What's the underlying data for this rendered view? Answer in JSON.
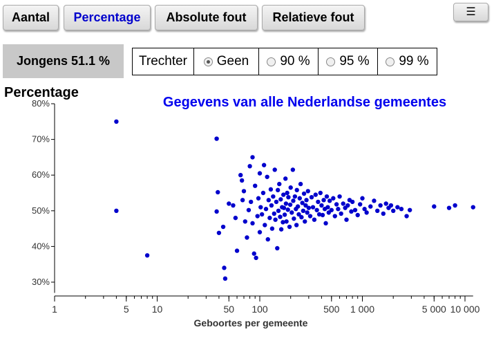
{
  "tabs": [
    {
      "label": "Aantal",
      "active": false
    },
    {
      "label": "Percentage",
      "active": true
    },
    {
      "label": "Absolute fout",
      "active": false
    },
    {
      "label": "Relatieve fout",
      "active": false
    }
  ],
  "menu": {
    "icon": "menu-icon",
    "glyph": "☰"
  },
  "stat": {
    "label": "Jongens 51.1 %"
  },
  "funnel": {
    "label": "Trechter",
    "options": [
      {
        "label": "Geen",
        "checked": true
      },
      {
        "label": "90 %",
        "checked": false
      },
      {
        "label": "95 %",
        "checked": false
      },
      {
        "label": "99 %",
        "checked": false
      }
    ]
  },
  "colors": {
    "point": "#0000cc",
    "title": "#0000ee",
    "active_tab": "#0000cc"
  },
  "chart_data": {
    "type": "scatter",
    "title": "Gegevens van alle Nederlandse gemeentes",
    "ylabel": "Percentage",
    "xlabel": "Geboortes per gemeente",
    "x_scale": "log",
    "xlim": [
      1,
      12000
    ],
    "ylim": [
      27,
      80
    ],
    "x_ticks": [
      {
        "value": 1,
        "label": "1"
      },
      {
        "value": 5,
        "label": "5"
      },
      {
        "value": 10,
        "label": "10"
      },
      {
        "value": 50,
        "label": "50"
      },
      {
        "value": 100,
        "label": "100"
      },
      {
        "value": 500,
        "label": "500"
      },
      {
        "value": 1000,
        "label": "1 000"
      },
      {
        "value": 5000,
        "label": "5 000"
      },
      {
        "value": 10000,
        "label": "10 000"
      }
    ],
    "y_ticks": [
      {
        "value": 30,
        "label": "30%"
      },
      {
        "value": 40,
        "label": "40%"
      },
      {
        "value": 50,
        "label": "50%"
      },
      {
        "value": 60,
        "label": "60%"
      },
      {
        "value": 70,
        "label": "70%"
      },
      {
        "value": 80,
        "label": "80%"
      }
    ],
    "points": [
      [
        4,
        75
      ],
      [
        4,
        50
      ],
      [
        8,
        37.5
      ],
      [
        38,
        70.2
      ],
      [
        39,
        55.2
      ],
      [
        38,
        49.8
      ],
      [
        40,
        43.8
      ],
      [
        44,
        45.5
      ],
      [
        45,
        34
      ],
      [
        46,
        31
      ],
      [
        50,
        52
      ],
      [
        55,
        51.5
      ],
      [
        58,
        48
      ],
      [
        60,
        38.8
      ],
      [
        65,
        60
      ],
      [
        67,
        58.5
      ],
      [
        68,
        53
      ],
      [
        70,
        55.5
      ],
      [
        72,
        47
      ],
      [
        75,
        42.5
      ],
      [
        78,
        50.2
      ],
      [
        80,
        62.5
      ],
      [
        82,
        52.5
      ],
      [
        85,
        65
      ],
      [
        85,
        46.5
      ],
      [
        88,
        38
      ],
      [
        90,
        57
      ],
      [
        92,
        36.8
      ],
      [
        95,
        48.5
      ],
      [
        97,
        53.5
      ],
      [
        100,
        60.5
      ],
      [
        100,
        44
      ],
      [
        102,
        51
      ],
      [
        105,
        49
      ],
      [
        108,
        55
      ],
      [
        110,
        62.8
      ],
      [
        112,
        46
      ],
      [
        115,
        50.5
      ],
      [
        118,
        59.5
      ],
      [
        120,
        42
      ],
      [
        122,
        53
      ],
      [
        125,
        48
      ],
      [
        128,
        56
      ],
      [
        130,
        51.5
      ],
      [
        132,
        45
      ],
      [
        135,
        54
      ],
      [
        138,
        49.2
      ],
      [
        140,
        61.5
      ],
      [
        142,
        47.5
      ],
      [
        145,
        52.5
      ],
      [
        148,
        39.5
      ],
      [
        150,
        55.8
      ],
      [
        152,
        50
      ],
      [
        155,
        57.5
      ],
      [
        158,
        48.3
      ],
      [
        160,
        53.2
      ],
      [
        162,
        44.8
      ],
      [
        165,
        51
      ],
      [
        168,
        46.8
      ],
      [
        170,
        54.5
      ],
      [
        172,
        50.8
      ],
      [
        175,
        48.9
      ],
      [
        178,
        59
      ],
      [
        180,
        52
      ],
      [
        182,
        47
      ],
      [
        185,
        55
      ],
      [
        188,
        50.3
      ],
      [
        190,
        53.8
      ],
      [
        195,
        45.5
      ],
      [
        198,
        51.7
      ],
      [
        200,
        56.5
      ],
      [
        205,
        49.5
      ],
      [
        210,
        61.5
      ],
      [
        212,
        52.8
      ],
      [
        215,
        47.8
      ],
      [
        220,
        54
      ],
      [
        225,
        50.5
      ],
      [
        228,
        46
      ],
      [
        230,
        55.8
      ],
      [
        235,
        51.2
      ],
      [
        240,
        49
      ],
      [
        245,
        53.5
      ],
      [
        250,
        57.5
      ],
      [
        255,
        48.2
      ],
      [
        260,
        52.2
      ],
      [
        265,
        50
      ],
      [
        270,
        54.8
      ],
      [
        275,
        47
      ],
      [
        280,
        51.5
      ],
      [
        285,
        53
      ],
      [
        290,
        49.5
      ],
      [
        295,
        55.5
      ],
      [
        300,
        50.8
      ],
      [
        310,
        48.5
      ],
      [
        320,
        53.8
      ],
      [
        330,
        51
      ],
      [
        340,
        47.5
      ],
      [
        350,
        54.5
      ],
      [
        360,
        50.2
      ],
      [
        370,
        52.5
      ],
      [
        380,
        49
      ],
      [
        390,
        55
      ],
      [
        400,
        51.5
      ],
      [
        410,
        48.8
      ],
      [
        420,
        53
      ],
      [
        430,
        50.5
      ],
      [
        440,
        46.5
      ],
      [
        450,
        54
      ],
      [
        460,
        51
      ],
      [
        470,
        49.5
      ],
      [
        480,
        52.8
      ],
      [
        500,
        50.2
      ],
      [
        520,
        53.5
      ],
      [
        540,
        48.5
      ],
      [
        560,
        51.8
      ],
      [
        580,
        50.5
      ],
      [
        600,
        54
      ],
      [
        620,
        49.2
      ],
      [
        650,
        52
      ],
      [
        680,
        50.8
      ],
      [
        700,
        47.5
      ],
      [
        720,
        51.5
      ],
      [
        750,
        53
      ],
      [
        780,
        49.8
      ],
      [
        800,
        52.5
      ],
      [
        850,
        50.2
      ],
      [
        900,
        48.8
      ],
      [
        950,
        51.8
      ],
      [
        1000,
        53.5
      ],
      [
        1050,
        50.5
      ],
      [
        1100,
        49.5
      ],
      [
        1200,
        51.2
      ],
      [
        1300,
        52.8
      ],
      [
        1400,
        50
      ],
      [
        1500,
        51.5
      ],
      [
        1600,
        49.2
      ],
      [
        1700,
        52
      ],
      [
        1800,
        50.8
      ],
      [
        1900,
        51.5
      ],
      [
        2000,
        50
      ],
      [
        2200,
        51
      ],
      [
        2400,
        50.5
      ],
      [
        2700,
        48.5
      ],
      [
        2900,
        50.2
      ],
      [
        5000,
        51.2
      ],
      [
        7000,
        50.8
      ],
      [
        8000,
        51.5
      ],
      [
        12000,
        51
      ]
    ]
  }
}
